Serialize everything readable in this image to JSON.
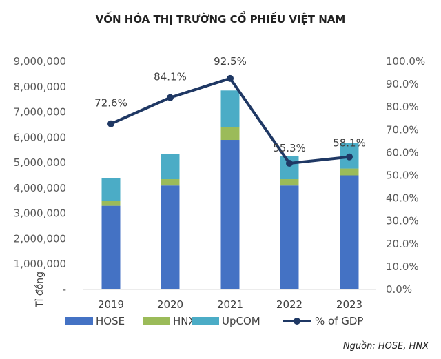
{
  "chart_data": {
    "type": "bar",
    "title": "VỐN HÓA THỊ TRƯỜNG CỔ PHIẾU VIỆT NAM",
    "ylabel": "Tỉ đồng",
    "source": "Nguồn: HOSE, HNX",
    "categories": [
      "2019",
      "2020",
      "2021",
      "2022",
      "2023"
    ],
    "stacked": true,
    "ylim": [
      0,
      9000000
    ],
    "y_ticks": [
      "-",
      "1,000,000",
      "2,000,000",
      "3,000,000",
      "4,000,000",
      "5,000,000",
      "6,000,000",
      "7,000,000",
      "8,000,000",
      "9,000,000"
    ],
    "y2lim": [
      0,
      100
    ],
    "y2_ticks": [
      "0.0%",
      "10.0%",
      "20.0%",
      "30.0%",
      "40.0%",
      "50.0%",
      "60.0%",
      "70.0%",
      "80.0%",
      "90.0%",
      "100.0%"
    ],
    "series": [
      {
        "name": "HOSE",
        "type": "bar",
        "color": "#4472C4",
        "values": [
          3300000,
          4100000,
          5900000,
          4100000,
          4500000
        ]
      },
      {
        "name": "HNX",
        "type": "bar",
        "color": "#9BBB59",
        "values": [
          200000,
          250000,
          500000,
          250000,
          270000
        ]
      },
      {
        "name": "UpCOM",
        "type": "bar",
        "color": "#4BACC6",
        "values": [
          900000,
          1000000,
          1450000,
          900000,
          1000000
        ]
      },
      {
        "name": "% of GDP",
        "type": "line",
        "axis": "right",
        "color": "#1F3864",
        "values": [
          72.6,
          84.1,
          92.5,
          55.3,
          58.1
        ],
        "labels": [
          "72.6%",
          "84.1%",
          "92.5%",
          "55.3%",
          "58.1%"
        ]
      }
    ],
    "legend_position": "bottom",
    "grid": false
  }
}
